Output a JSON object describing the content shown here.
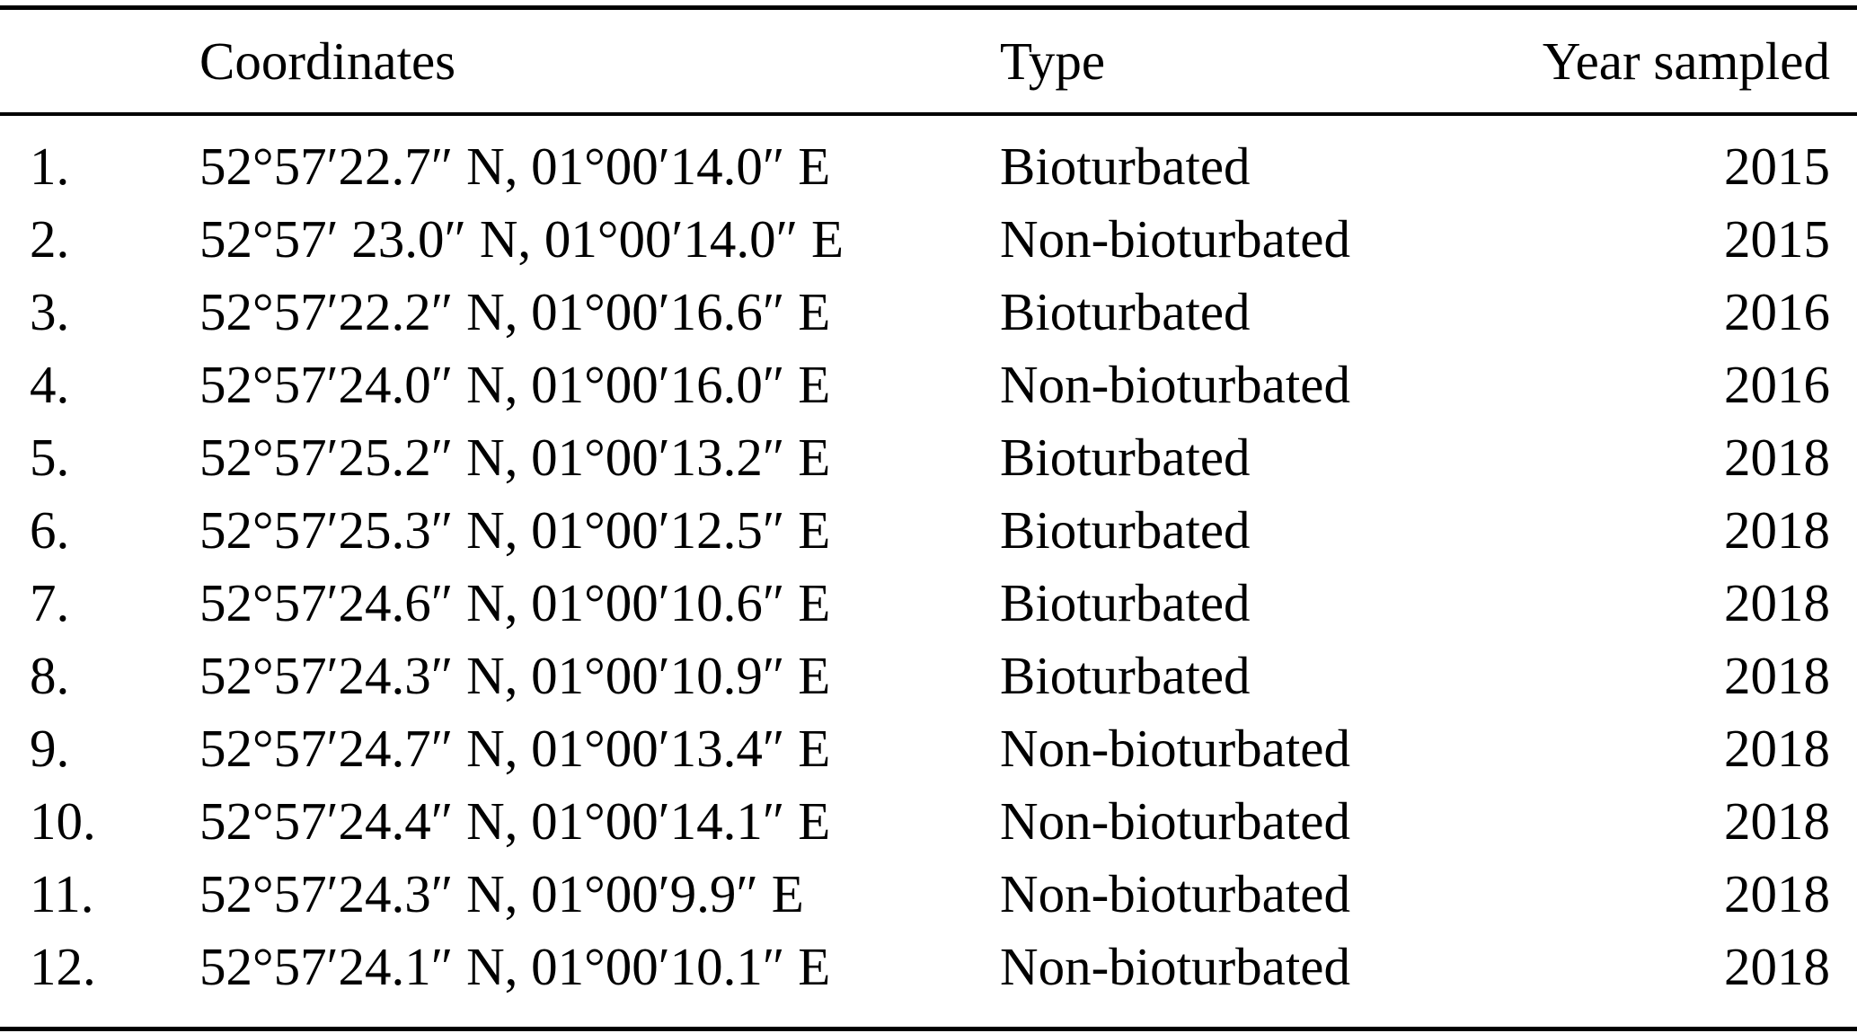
{
  "table": {
    "headers": {
      "index": "",
      "coordinates": "Coordinates",
      "type": "Type",
      "year": "Year sampled"
    },
    "rows": [
      {
        "index": "1.",
        "coordinates": "52°57′22.7″ N, 01°00′14.0″ E",
        "type": "Bioturbated",
        "year": "2015"
      },
      {
        "index": "2.",
        "coordinates": "52°57′ 23.0″ N, 01°00′14.0″ E",
        "type": "Non-bioturbated",
        "year": "2015"
      },
      {
        "index": "3.",
        "coordinates": "52°57′22.2″ N, 01°00′16.6″ E",
        "type": "Bioturbated",
        "year": "2016"
      },
      {
        "index": "4.",
        "coordinates": "52°57′24.0″ N, 01°00′16.0″ E",
        "type": "Non-bioturbated",
        "year": "2016"
      },
      {
        "index": "5.",
        "coordinates": "52°57′25.2″ N, 01°00′13.2″ E",
        "type": "Bioturbated",
        "year": "2018"
      },
      {
        "index": "6.",
        "coordinates": "52°57′25.3″ N, 01°00′12.5″ E",
        "type": "Bioturbated",
        "year": "2018"
      },
      {
        "index": "7.",
        "coordinates": "52°57′24.6″ N, 01°00′10.6″ E",
        "type": "Bioturbated",
        "year": "2018"
      },
      {
        "index": "8.",
        "coordinates": "52°57′24.3″ N, 01°00′10.9″ E",
        "type": "Bioturbated",
        "year": "2018"
      },
      {
        "index": "9.",
        "coordinates": "52°57′24.7″ N, 01°00′13.4″ E",
        "type": "Non-bioturbated",
        "year": "2018"
      },
      {
        "index": "10.",
        "coordinates": "52°57′24.4″ N, 01°00′14.1″ E",
        "type": "Non-bioturbated",
        "year": "2018"
      },
      {
        "index": "11.",
        "coordinates": "52°57′24.3″ N, 01°00′9.9″ E",
        "type": "Non-bioturbated",
        "year": "2018"
      },
      {
        "index": "12.",
        "coordinates": "52°57′24.1″ N, 01°00′10.1″ E",
        "type": "Non-bioturbated",
        "year": "2018"
      }
    ],
    "colors": {
      "text": "#000000",
      "background": "#ffffff",
      "rule": "#000000"
    }
  }
}
